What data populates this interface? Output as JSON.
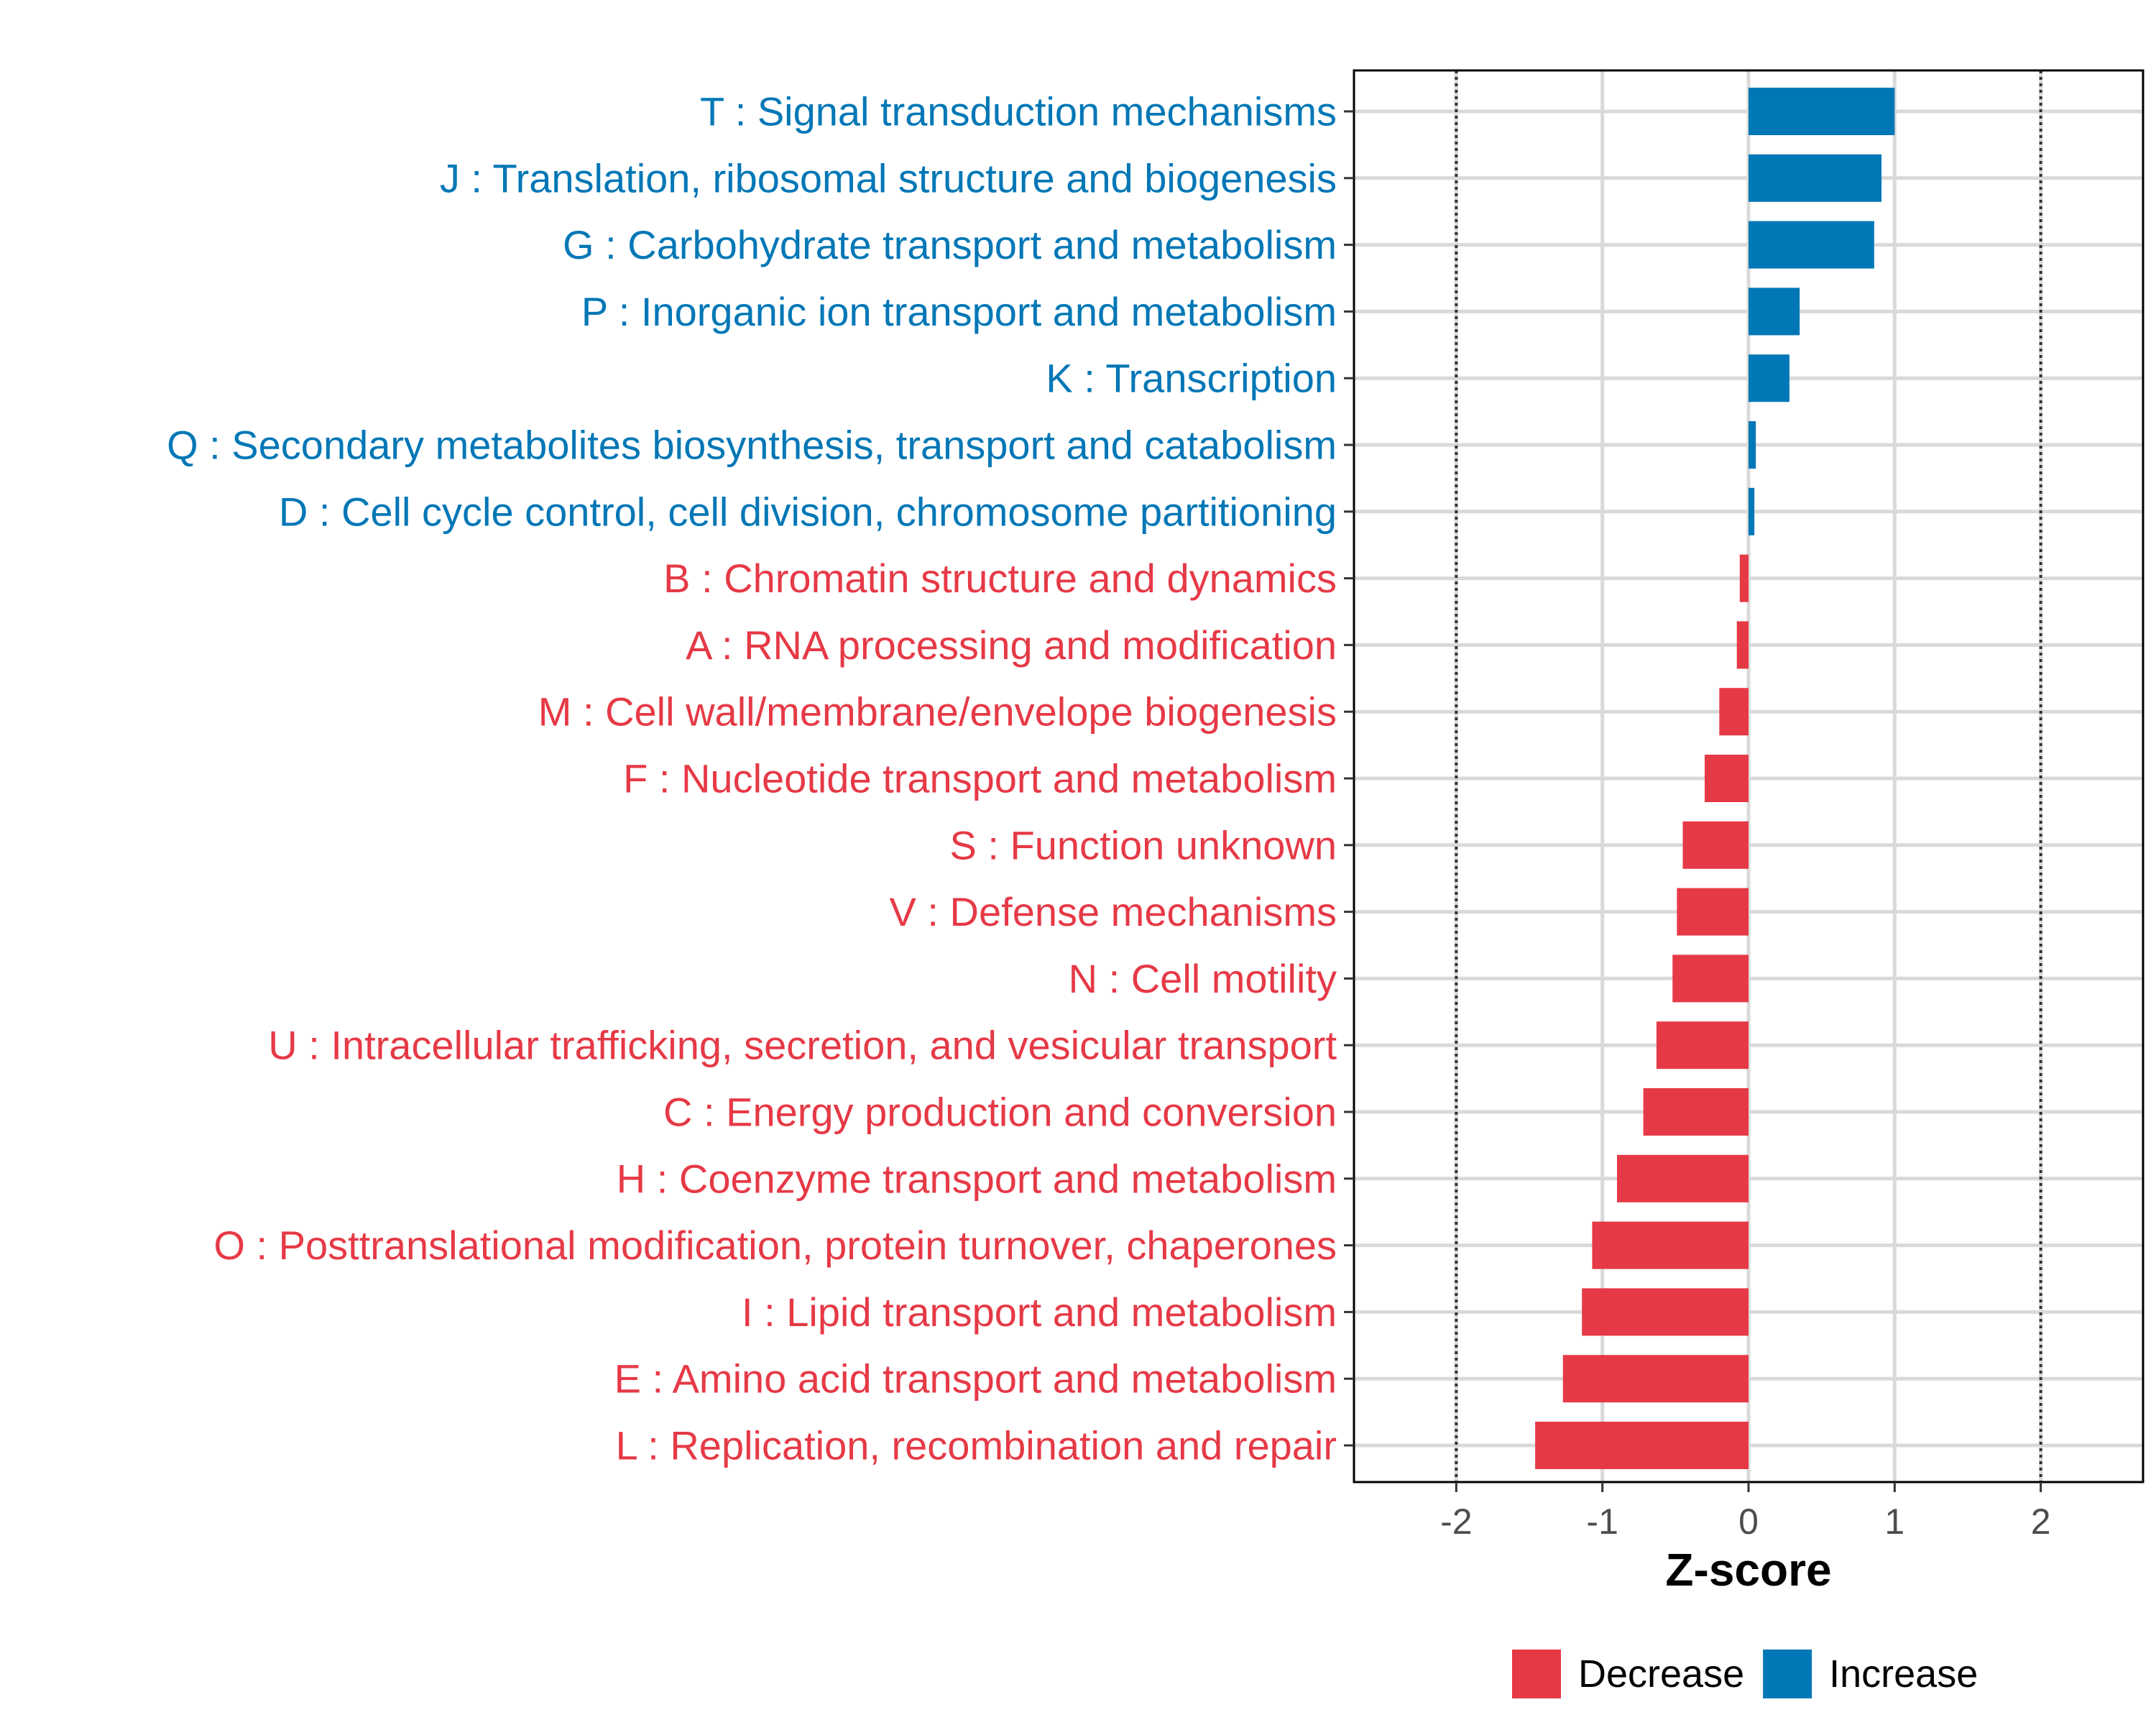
{
  "chart_data": {
    "type": "bar",
    "orientation": "horizontal",
    "xlabel": "Z-score",
    "xlim": [
      -2.7,
      2.7
    ],
    "xticks": [
      -2,
      -1,
      0,
      1,
      2
    ],
    "reference_lines": [
      -2,
      2
    ],
    "grid": true,
    "legend_position": "bottom-right",
    "colors": {
      "Decrease": "#e63946",
      "Increase": "#0077b6"
    },
    "legend": [
      {
        "name": "Decrease",
        "color": "#e63946"
      },
      {
        "name": "Increase",
        "color": "#0077b6"
      }
    ],
    "categories": [
      {
        "label": "T : Signal transduction mechanisms",
        "value": 1.0,
        "direction": "Increase"
      },
      {
        "label": "J : Translation, ribosomal structure and biogenesis",
        "value": 0.91,
        "direction": "Increase"
      },
      {
        "label": "G : Carbohydrate transport and metabolism",
        "value": 0.86,
        "direction": "Increase"
      },
      {
        "label": "P : Inorganic ion transport and metabolism",
        "value": 0.35,
        "direction": "Increase"
      },
      {
        "label": "K : Transcription",
        "value": 0.28,
        "direction": "Increase"
      },
      {
        "label": "Q : Secondary metabolites biosynthesis, transport and catabolism",
        "value": 0.05,
        "direction": "Increase"
      },
      {
        "label": "D : Cell cycle control, cell division, chromosome partitioning",
        "value": 0.04,
        "direction": "Increase"
      },
      {
        "label": "B : Chromatin structure and dynamics",
        "value": -0.06,
        "direction": "Decrease"
      },
      {
        "label": "A : RNA processing and modification",
        "value": -0.08,
        "direction": "Decrease"
      },
      {
        "label": "M : Cell wall/membrane/envelope biogenesis",
        "value": -0.2,
        "direction": "Decrease"
      },
      {
        "label": "F : Nucleotide transport and metabolism",
        "value": -0.3,
        "direction": "Decrease"
      },
      {
        "label": "S : Function unknown",
        "value": -0.45,
        "direction": "Decrease"
      },
      {
        "label": "V : Defense mechanisms",
        "value": -0.49,
        "direction": "Decrease"
      },
      {
        "label": "N : Cell motility",
        "value": -0.52,
        "direction": "Decrease"
      },
      {
        "label": "U : Intracellular trafficking, secretion, and vesicular transport",
        "value": -0.63,
        "direction": "Decrease"
      },
      {
        "label": "C : Energy production and conversion",
        "value": -0.72,
        "direction": "Decrease"
      },
      {
        "label": "H : Coenzyme transport and metabolism",
        "value": -0.9,
        "direction": "Decrease"
      },
      {
        "label": "O : Posttranslational modification, protein turnover, chaperones",
        "value": -1.07,
        "direction": "Decrease"
      },
      {
        "label": "I : Lipid transport and metabolism",
        "value": -1.14,
        "direction": "Decrease"
      },
      {
        "label": "E : Amino acid transport and metabolism",
        "value": -1.27,
        "direction": "Decrease"
      },
      {
        "label": "L : Replication, recombination and repair",
        "value": -1.46,
        "direction": "Decrease"
      }
    ]
  }
}
